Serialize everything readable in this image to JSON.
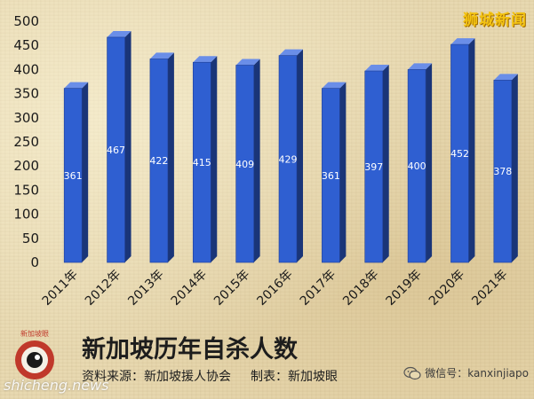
{
  "brand_label": "狮城新闻",
  "watermark": "shicheng.news",
  "logo_text": "新加坡眼",
  "footer": {
    "title": "新加坡历年自杀人数",
    "source": "资料来源：新加坡援人协会",
    "maker": "制表：新加坡眼",
    "wechat": "微信号：kanxinjiapo"
  },
  "colors": {
    "bar_front": "#2f5fd1",
    "bar_side": "#1a3578",
    "bar_top": "#6a8ee8",
    "brand": "#f3c312"
  },
  "chart_data": {
    "type": "bar",
    "categories": [
      "2011年",
      "2012年",
      "2013年",
      "2014年",
      "2015年",
      "2016年",
      "2017年",
      "2018年",
      "2019年",
      "2020年",
      "2021年"
    ],
    "values": [
      361,
      467,
      422,
      415,
      409,
      429,
      361,
      397,
      400,
      452,
      378
    ],
    "ylim": [
      0,
      500
    ],
    "yticks": [
      0,
      50,
      100,
      150,
      200,
      250,
      300,
      350,
      400,
      450,
      500
    ],
    "grid": false,
    "bar_style": "3d"
  }
}
